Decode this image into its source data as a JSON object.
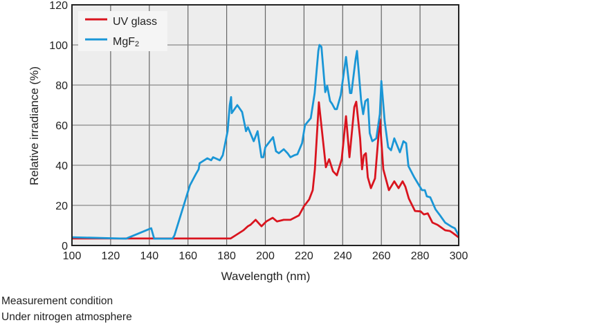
{
  "chart_data": {
    "type": "line",
    "xlabel": "Wavelength (nm)",
    "ylabel": "Relative irradiance (%)",
    "xlim": [
      100,
      300
    ],
    "ylim": [
      0,
      120
    ],
    "xticks": [
      100,
      120,
      140,
      160,
      180,
      200,
      220,
      240,
      260,
      280,
      300
    ],
    "yticks": [
      0,
      20,
      40,
      60,
      80,
      100,
      120
    ],
    "grid": true,
    "legend_position": "top-left",
    "series": [
      {
        "name": "UV glass",
        "color": "#d9141e",
        "points": [
          [
            100,
            3.5
          ],
          [
            182,
            3.5
          ],
          [
            184.5,
            5
          ],
          [
            188.7,
            7.6
          ],
          [
            191,
            9.6
          ],
          [
            192.3,
            10.3
          ],
          [
            195,
            12.8
          ],
          [
            198,
            9.6
          ],
          [
            200.5,
            12
          ],
          [
            203.8,
            13.8
          ],
          [
            206,
            12
          ],
          [
            209.5,
            12.8
          ],
          [
            213,
            12.8
          ],
          [
            217.4,
            15
          ],
          [
            220,
            19.6
          ],
          [
            222.7,
            23
          ],
          [
            224.5,
            27.6
          ],
          [
            225.6,
            38
          ],
          [
            227.7,
            71.4
          ],
          [
            231.3,
            39
          ],
          [
            233,
            43
          ],
          [
            235,
            37
          ],
          [
            237,
            35
          ],
          [
            239.5,
            43
          ],
          [
            241.7,
            64.5
          ],
          [
            243.5,
            44
          ],
          [
            246,
            69
          ],
          [
            247,
            71.7
          ],
          [
            249,
            53.4
          ],
          [
            250,
            38
          ],
          [
            251,
            45
          ],
          [
            252,
            46
          ],
          [
            253,
            34
          ],
          [
            254.6,
            28.6
          ],
          [
            256.7,
            33.4
          ],
          [
            259.2,
            63
          ],
          [
            261,
            38
          ],
          [
            263.9,
            27.6
          ],
          [
            266.7,
            32
          ],
          [
            268.9,
            28.6
          ],
          [
            271,
            32
          ],
          [
            272.4,
            29.3
          ],
          [
            274.2,
            23.4
          ],
          [
            277.4,
            17.2
          ],
          [
            280.3,
            17
          ],
          [
            282,
            15.5
          ],
          [
            284,
            16
          ],
          [
            286.4,
            11.4
          ],
          [
            289,
            10.3
          ],
          [
            293,
            7.6
          ],
          [
            295.5,
            7.2
          ],
          [
            297,
            6.2
          ],
          [
            300,
            4
          ]
        ]
      },
      {
        "name": "MgF2",
        "color": "#1a96d6",
        "points": [
          [
            100,
            4.1
          ],
          [
            128,
            3.4
          ],
          [
            141,
            8.6
          ],
          [
            142.5,
            3.4
          ],
          [
            152,
            3.4
          ],
          [
            153,
            5
          ],
          [
            161,
            30
          ],
          [
            164,
            35.5
          ],
          [
            165.5,
            38
          ],
          [
            166,
            41
          ],
          [
            170,
            43.5
          ],
          [
            172,
            42.5
          ],
          [
            173,
            44
          ],
          [
            176.5,
            42.5
          ],
          [
            178,
            45
          ],
          [
            180.5,
            57
          ],
          [
            181.6,
            70
          ],
          [
            182.3,
            74
          ],
          [
            182.6,
            66
          ],
          [
            185.5,
            70
          ],
          [
            188,
            66.5
          ],
          [
            190,
            57
          ],
          [
            191,
            59
          ],
          [
            194,
            52
          ],
          [
            196,
            57
          ],
          [
            198,
            44
          ],
          [
            199,
            44
          ],
          [
            200,
            49
          ],
          [
            204,
            54
          ],
          [
            205.5,
            47
          ],
          [
            207,
            46
          ],
          [
            209.5,
            48
          ],
          [
            211.5,
            46
          ],
          [
            213,
            44
          ],
          [
            215,
            45
          ],
          [
            216.6,
            45.5
          ],
          [
            219,
            51
          ],
          [
            220.5,
            60
          ],
          [
            223.5,
            63.5
          ],
          [
            225.5,
            76
          ],
          [
            227.4,
            97
          ],
          [
            228,
            100
          ],
          [
            229,
            99
          ],
          [
            231,
            76.5
          ],
          [
            232,
            79.6
          ],
          [
            233.5,
            72
          ],
          [
            234.5,
            70.7
          ],
          [
            236,
            68
          ],
          [
            237,
            68
          ],
          [
            239,
            75
          ],
          [
            241.7,
            94
          ],
          [
            243.8,
            76
          ],
          [
            244.5,
            76
          ],
          [
            246.7,
            93
          ],
          [
            247.4,
            97
          ],
          [
            249.5,
            72.4
          ],
          [
            250.6,
            65.5
          ],
          [
            251.7,
            72
          ],
          [
            253,
            73
          ],
          [
            254,
            56
          ],
          [
            255.3,
            52
          ],
          [
            257.4,
            53.4
          ],
          [
            259.2,
            65.5
          ],
          [
            260,
            82
          ],
          [
            261.7,
            62
          ],
          [
            263.5,
            49
          ],
          [
            265,
            47.5
          ],
          [
            266.7,
            53.4
          ],
          [
            269.6,
            46.5
          ],
          [
            271.4,
            52
          ],
          [
            272.8,
            51
          ],
          [
            274,
            39.6
          ],
          [
            277,
            34
          ],
          [
            281,
            27.6
          ],
          [
            282.5,
            27.6
          ],
          [
            283.5,
            24.5
          ],
          [
            285.3,
            24
          ],
          [
            288,
            18
          ],
          [
            290,
            15.5
          ],
          [
            293,
            11.4
          ],
          [
            296.4,
            9.3
          ],
          [
            298,
            8.6
          ],
          [
            300,
            5
          ]
        ]
      }
    ]
  },
  "legend": {
    "uv_glass": "UV glass",
    "mgf2_base": "MgF",
    "mgf2_sub": "2"
  },
  "notes": {
    "line1": "Measurement condition",
    "line2": "Under nitrogen atmosphere"
  }
}
